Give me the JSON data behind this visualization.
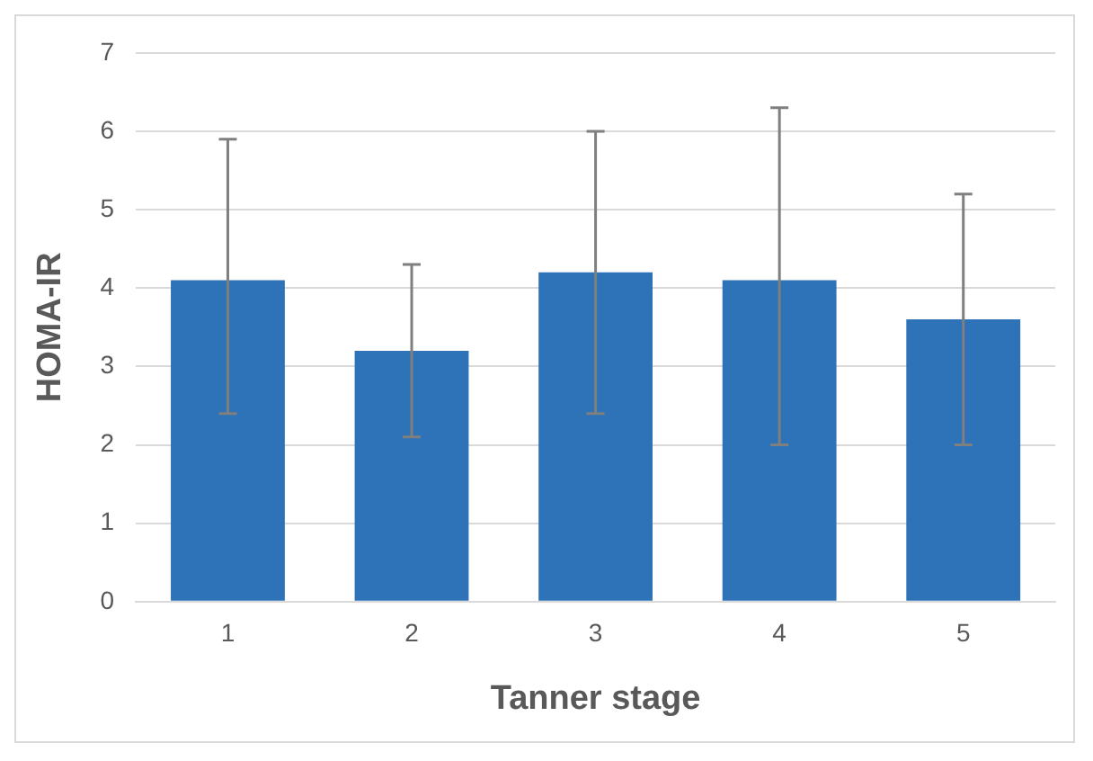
{
  "chart_data": {
    "type": "bar",
    "xlabel": "Tanner stage",
    "ylabel": "HOMA-IR",
    "categories": [
      "1",
      "2",
      "3",
      "4",
      "5"
    ],
    "values": [
      4.1,
      3.2,
      4.2,
      4.1,
      3.6
    ],
    "errors": [
      [
        2.4,
        5.9
      ],
      [
        2.1,
        4.3
      ],
      [
        2.4,
        6.0
      ],
      [
        2.0,
        6.3
      ],
      [
        2.0,
        5.2
      ]
    ],
    "color": "#2e73b8",
    "ylim": [
      0,
      7
    ],
    "yticks": [
      0,
      1,
      2,
      3,
      4,
      5,
      6,
      7
    ],
    "grid": "y",
    "legend": false
  }
}
